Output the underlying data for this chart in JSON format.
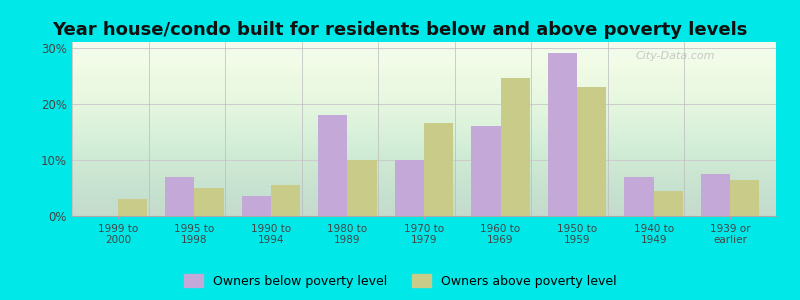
{
  "title": "Year house/condo built for residents below and above poverty levels",
  "categories": [
    "1999 to\n2000",
    "1995 to\n1998",
    "1990 to\n1994",
    "1980 to\n1989",
    "1970 to\n1979",
    "1960 to\n1969",
    "1950 to\n1959",
    "1940 to\n1949",
    "1939 or\nearlier"
  ],
  "below_poverty": [
    0,
    7,
    3.5,
    18,
    10,
    16,
    29,
    7,
    7.5
  ],
  "above_poverty": [
    3,
    5,
    5.5,
    10,
    16.5,
    24.5,
    23,
    4.5,
    6.5
  ],
  "below_color": "#c4a8d8",
  "above_color": "#c8cc88",
  "background_grad_top": "#e0f5e0",
  "background_grad_bottom": "#f5fff5",
  "outer_background": "#00e8e8",
  "ylim": [
    0,
    31
  ],
  "yticks": [
    0,
    10,
    20,
    30
  ],
  "ytick_labels": [
    "0%",
    "10%",
    "20%",
    "30%"
  ],
  "legend_below": "Owners below poverty level",
  "legend_above": "Owners above poverty level",
  "title_fontsize": 13,
  "bar_width": 0.38,
  "grid_color": "#cccccc",
  "watermark": "City-Data.com"
}
